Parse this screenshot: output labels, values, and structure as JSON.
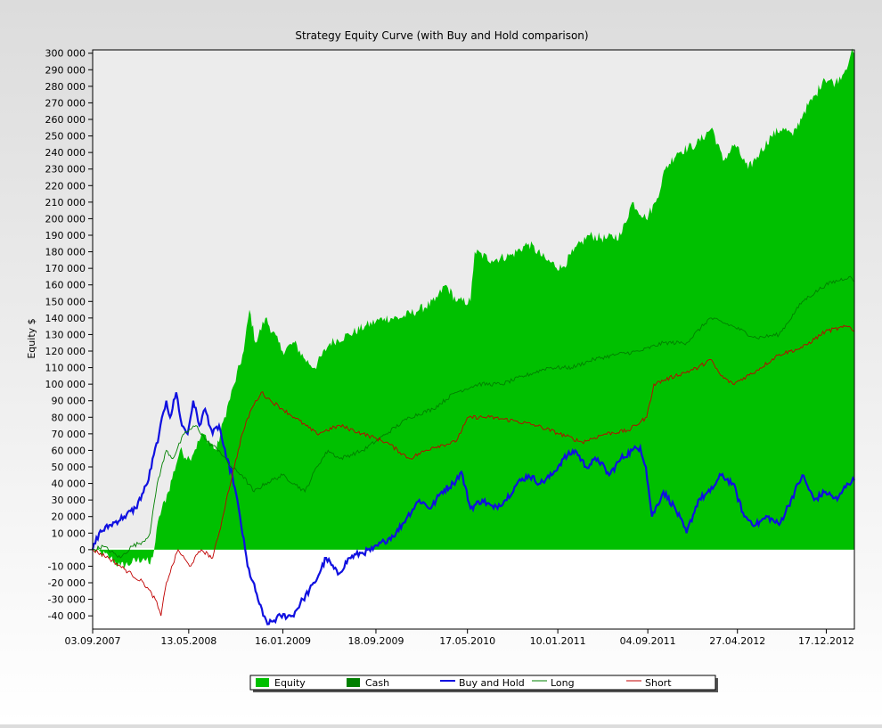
{
  "chart_data": {
    "type": "area",
    "title": "Strategy Equity Curve (with Buy and Hold comparison)",
    "xlabel": "",
    "ylabel": "Equity $",
    "ylim": [
      -48000,
      302000
    ],
    "yticks": [
      -40000,
      -30000,
      -20000,
      -10000,
      0,
      10000,
      20000,
      30000,
      40000,
      50000,
      60000,
      70000,
      80000,
      90000,
      100000,
      110000,
      120000,
      130000,
      140000,
      150000,
      160000,
      170000,
      180000,
      190000,
      200000,
      210000,
      220000,
      230000,
      240000,
      250000,
      260000,
      270000,
      280000,
      290000,
      300000
    ],
    "ytick_labels": [
      "-40 000",
      "-30 000",
      "-20 000",
      "-10 000",
      "0",
      "10 000",
      "20 000",
      "30 000",
      "40 000",
      "50 000",
      "60 000",
      "70 000",
      "80 000",
      "90 000",
      "100 000",
      "110 000",
      "120 000",
      "130 000",
      "140 000",
      "150 000",
      "160 000",
      "170 000",
      "180 000",
      "190 000",
      "200 000",
      "210 000",
      "220 000",
      "230 000",
      "240 000",
      "250 000",
      "260 000",
      "270 000",
      "280 000",
      "290 000",
      "300 000"
    ],
    "xlim": [
      "2007-09-03",
      "2013-03-01"
    ],
    "xticks": [
      "2007-09-03",
      "2008-05-13",
      "2009-01-16",
      "2009-09-18",
      "2010-05-17",
      "2011-01-10",
      "2011-09-04",
      "2012-04-27",
      "2012-12-17"
    ],
    "xtick_labels": [
      "03.09.2007",
      "13.05.2008",
      "16.01.2009",
      "18.09.2009",
      "17.05.2010",
      "10.01.2011",
      "04.09.2011",
      "27.04.2012",
      "17.12.2012"
    ],
    "grid": false,
    "legend_position": "bottom-center",
    "legend": [
      {
        "name": "Equity",
        "kind": "area",
        "color": "#00c000"
      },
      {
        "name": "Cash",
        "kind": "area",
        "color": "#008000"
      },
      {
        "name": "Buy and Hold",
        "kind": "line",
        "color": "#1010e0"
      },
      {
        "name": "Long",
        "kind": "line",
        "color": "#008000"
      },
      {
        "name": "Short",
        "kind": "line",
        "color": "#c00000"
      }
    ],
    "series": [
      {
        "name": "Equity",
        "kind": "area",
        "color": "#00c000",
        "points": [
          [
            "2007-09-03",
            0
          ],
          [
            "2007-10-20",
            -5000
          ],
          [
            "2007-11-15",
            -10000
          ],
          [
            "2007-12-15",
            -8000
          ],
          [
            "2008-01-15",
            -5000
          ],
          [
            "2008-02-01",
            -9000
          ],
          [
            "2008-02-12",
            0
          ],
          [
            "2008-02-25",
            20000
          ],
          [
            "2008-03-20",
            35000
          ],
          [
            "2008-04-20",
            60000
          ],
          [
            "2008-05-15",
            55000
          ],
          [
            "2008-06-20",
            70000
          ],
          [
            "2008-07-25",
            60000
          ],
          [
            "2008-08-15",
            80000
          ],
          [
            "2008-09-10",
            100000
          ],
          [
            "2008-10-05",
            120000
          ],
          [
            "2008-10-20",
            145000
          ],
          [
            "2008-11-05",
            125000
          ],
          [
            "2008-12-01",
            140000
          ],
          [
            "2009-01-15",
            120000
          ],
          [
            "2009-02-15",
            125000
          ],
          [
            "2009-03-15",
            115000
          ],
          [
            "2009-04-10",
            110000
          ],
          [
            "2009-05-20",
            125000
          ],
          [
            "2009-07-10",
            130000
          ],
          [
            "2009-08-20",
            135000
          ],
          [
            "2009-10-10",
            140000
          ],
          [
            "2009-11-20",
            140000
          ],
          [
            "2010-01-10",
            145000
          ],
          [
            "2010-02-20",
            150000
          ],
          [
            "2010-03-20",
            160000
          ],
          [
            "2010-04-20",
            150000
          ],
          [
            "2010-05-25",
            150000
          ],
          [
            "2010-06-05",
            180000
          ],
          [
            "2010-07-20",
            175000
          ],
          [
            "2010-09-10",
            178000
          ],
          [
            "2010-10-25",
            185000
          ],
          [
            "2010-12-10",
            175000
          ],
          [
            "2011-01-20",
            170000
          ],
          [
            "2011-02-20",
            180000
          ],
          [
            "2011-04-01",
            190000
          ],
          [
            "2011-05-15",
            188000
          ],
          [
            "2011-06-25",
            190000
          ],
          [
            "2011-07-25",
            210000
          ],
          [
            "2011-08-30",
            200000
          ],
          [
            "2011-09-25",
            210000
          ],
          [
            "2011-10-20",
            230000
          ],
          [
            "2011-11-20",
            240000
          ],
          [
            "2012-01-10",
            245000
          ],
          [
            "2012-02-20",
            255000
          ],
          [
            "2012-03-20",
            235000
          ],
          [
            "2012-04-20",
            245000
          ],
          [
            "2012-05-25",
            230000
          ],
          [
            "2012-06-25",
            240000
          ],
          [
            "2012-07-25",
            250000
          ],
          [
            "2012-08-25",
            255000
          ],
          [
            "2012-09-20",
            250000
          ],
          [
            "2012-10-20",
            265000
          ],
          [
            "2012-11-20",
            275000
          ],
          [
            "2012-12-10",
            285000
          ],
          [
            "2013-01-10",
            282000
          ],
          [
            "2013-02-05",
            290000
          ],
          [
            "2013-02-20",
            300000
          ],
          [
            "2013-03-01",
            300000
          ]
        ]
      },
      {
        "name": "Buy and Hold",
        "kind": "line",
        "color": "#1010e0",
        "points": [
          [
            "2007-09-03",
            0
          ],
          [
            "2007-09-20",
            10000
          ],
          [
            "2007-10-20",
            15000
          ],
          [
            "2007-11-25",
            20000
          ],
          [
            "2007-12-25",
            25000
          ],
          [
            "2008-01-25",
            40000
          ],
          [
            "2008-02-25",
            70000
          ],
          [
            "2008-03-15",
            90000
          ],
          [
            "2008-03-25",
            80000
          ],
          [
            "2008-04-10",
            95000
          ],
          [
            "2008-04-25",
            75000
          ],
          [
            "2008-05-10",
            70000
          ],
          [
            "2008-05-25",
            90000
          ],
          [
            "2008-06-10",
            75000
          ],
          [
            "2008-06-25",
            85000
          ],
          [
            "2008-07-15",
            70000
          ],
          [
            "2008-08-01",
            75000
          ],
          [
            "2008-08-20",
            55000
          ],
          [
            "2008-09-05",
            45000
          ],
          [
            "2008-09-25",
            20000
          ],
          [
            "2008-10-15",
            -10000
          ],
          [
            "2008-11-05",
            -25000
          ],
          [
            "2008-11-25",
            -40000
          ],
          [
            "2008-12-10",
            -45000
          ],
          [
            "2009-01-10",
            -40000
          ],
          [
            "2009-02-10",
            -40000
          ],
          [
            "2009-03-10",
            -30000
          ],
          [
            "2009-04-10",
            -20000
          ],
          [
            "2009-05-10",
            -5000
          ],
          [
            "2009-06-10",
            -15000
          ],
          [
            "2009-07-10",
            -5000
          ],
          [
            "2009-08-10",
            -2000
          ],
          [
            "2009-09-10",
            0
          ],
          [
            "2009-10-10",
            5000
          ],
          [
            "2009-11-10",
            10000
          ],
          [
            "2009-12-10",
            20000
          ],
          [
            "2010-01-10",
            30000
          ],
          [
            "2010-02-10",
            25000
          ],
          [
            "2010-03-10",
            35000
          ],
          [
            "2010-04-10",
            40000
          ],
          [
            "2010-05-01",
            47000
          ],
          [
            "2010-05-25",
            25000
          ],
          [
            "2010-06-25",
            30000
          ],
          [
            "2010-07-25",
            25000
          ],
          [
            "2010-08-25",
            30000
          ],
          [
            "2010-09-25",
            40000
          ],
          [
            "2010-10-25",
            45000
          ],
          [
            "2010-11-25",
            40000
          ],
          [
            "2010-12-25",
            45000
          ],
          [
            "2011-01-25",
            55000
          ],
          [
            "2011-02-25",
            60000
          ],
          [
            "2011-03-25",
            50000
          ],
          [
            "2011-04-25",
            55000
          ],
          [
            "2011-05-25",
            45000
          ],
          [
            "2011-06-25",
            55000
          ],
          [
            "2011-07-25",
            60000
          ],
          [
            "2011-08-15",
            62000
          ],
          [
            "2011-08-30",
            50000
          ],
          [
            "2011-09-15",
            20000
          ],
          [
            "2011-10-15",
            35000
          ],
          [
            "2011-11-15",
            25000
          ],
          [
            "2011-12-15",
            10000
          ],
          [
            "2012-01-15",
            30000
          ],
          [
            "2012-02-15",
            35000
          ],
          [
            "2012-03-15",
            45000
          ],
          [
            "2012-04-15",
            40000
          ],
          [
            "2012-05-15",
            20000
          ],
          [
            "2012-06-15",
            15000
          ],
          [
            "2012-07-15",
            20000
          ],
          [
            "2012-08-15",
            15000
          ],
          [
            "2012-09-15",
            30000
          ],
          [
            "2012-10-15",
            45000
          ],
          [
            "2012-11-15",
            30000
          ],
          [
            "2012-12-15",
            35000
          ],
          [
            "2013-01-15",
            30000
          ],
          [
            "2013-02-10",
            40000
          ],
          [
            "2013-03-01",
            42000
          ]
        ]
      },
      {
        "name": "Long",
        "kind": "line",
        "color": "#008000",
        "points": [
          [
            "2007-09-03",
            0
          ],
          [
            "2007-10-01",
            2000
          ],
          [
            "2007-11-15",
            -5000
          ],
          [
            "2007-12-15",
            2000
          ],
          [
            "2008-01-15",
            5000
          ],
          [
            "2008-02-01",
            10000
          ],
          [
            "2008-02-20",
            40000
          ],
          [
            "2008-03-15",
            60000
          ],
          [
            "2008-04-01",
            55000
          ],
          [
            "2008-05-01",
            70000
          ],
          [
            "2008-06-01",
            75000
          ],
          [
            "2008-07-01",
            65000
          ],
          [
            "2008-08-01",
            60000
          ],
          [
            "2008-09-01",
            50000
          ],
          [
            "2008-10-01",
            45000
          ],
          [
            "2008-11-01",
            35000
          ],
          [
            "2008-12-01",
            40000
          ],
          [
            "2009-01-15",
            45000
          ],
          [
            "2009-02-15",
            40000
          ],
          [
            "2009-03-15",
            35000
          ],
          [
            "2009-04-15",
            50000
          ],
          [
            "2009-05-15",
            60000
          ],
          [
            "2009-06-15",
            55000
          ],
          [
            "2009-08-15",
            60000
          ],
          [
            "2009-10-15",
            70000
          ],
          [
            "2009-12-15",
            80000
          ],
          [
            "2010-02-15",
            85000
          ],
          [
            "2010-04-15",
            95000
          ],
          [
            "2010-06-15",
            100000
          ],
          [
            "2010-08-15",
            100000
          ],
          [
            "2010-10-15",
            105000
          ],
          [
            "2010-12-15",
            110000
          ],
          [
            "2011-02-15",
            110000
          ],
          [
            "2011-04-15",
            115000
          ],
          [
            "2011-06-15",
            118000
          ],
          [
            "2011-08-15",
            120000
          ],
          [
            "2011-10-15",
            125000
          ],
          [
            "2011-12-15",
            125000
          ],
          [
            "2012-02-15",
            140000
          ],
          [
            "2012-04-15",
            135000
          ],
          [
            "2012-06-15",
            128000
          ],
          [
            "2012-08-15",
            130000
          ],
          [
            "2012-10-15",
            150000
          ],
          [
            "2012-12-15",
            160000
          ],
          [
            "2013-02-15",
            165000
          ],
          [
            "2013-03-01",
            162000
          ]
        ]
      },
      {
        "name": "Short",
        "kind": "line",
        "color": "#c00000",
        "points": [
          [
            "2007-09-03",
            0
          ],
          [
            "2007-10-15",
            -5000
          ],
          [
            "2007-11-15",
            -10000
          ],
          [
            "2007-12-15",
            -15000
          ],
          [
            "2008-01-15",
            -20000
          ],
          [
            "2008-02-15",
            -30000
          ],
          [
            "2008-03-01",
            -40000
          ],
          [
            "2008-03-15",
            -20000
          ],
          [
            "2008-04-15",
            0
          ],
          [
            "2008-05-15",
            -10000
          ],
          [
            "2008-06-15",
            0
          ],
          [
            "2008-07-15",
            -5000
          ],
          [
            "2008-08-01",
            10000
          ],
          [
            "2008-08-20",
            30000
          ],
          [
            "2008-09-10",
            50000
          ],
          [
            "2008-10-01",
            70000
          ],
          [
            "2008-10-25",
            85000
          ],
          [
            "2008-11-20",
            95000
          ],
          [
            "2008-12-15",
            90000
          ],
          [
            "2009-01-15",
            85000
          ],
          [
            "2009-02-15",
            80000
          ],
          [
            "2009-04-15",
            70000
          ],
          [
            "2009-06-15",
            75000
          ],
          [
            "2009-08-15",
            70000
          ],
          [
            "2009-10-15",
            65000
          ],
          [
            "2009-12-15",
            55000
          ],
          [
            "2010-02-15",
            62000
          ],
          [
            "2010-04-15",
            65000
          ],
          [
            "2010-05-20",
            80000
          ],
          [
            "2010-07-15",
            80000
          ],
          [
            "2010-09-15",
            78000
          ],
          [
            "2010-11-15",
            75000
          ],
          [
            "2011-01-15",
            70000
          ],
          [
            "2011-03-15",
            65000
          ],
          [
            "2011-05-15",
            70000
          ],
          [
            "2011-07-15",
            72000
          ],
          [
            "2011-09-01",
            80000
          ],
          [
            "2011-09-20",
            100000
          ],
          [
            "2011-11-15",
            105000
          ],
          [
            "2012-01-15",
            110000
          ],
          [
            "2012-02-15",
            115000
          ],
          [
            "2012-03-15",
            105000
          ],
          [
            "2012-04-15",
            100000
          ],
          [
            "2012-06-15",
            108000
          ],
          [
            "2012-08-15",
            118000
          ],
          [
            "2012-10-15",
            122000
          ],
          [
            "2012-12-15",
            132000
          ],
          [
            "2013-02-15",
            135000
          ],
          [
            "2013-03-01",
            132000
          ]
        ]
      }
    ]
  }
}
